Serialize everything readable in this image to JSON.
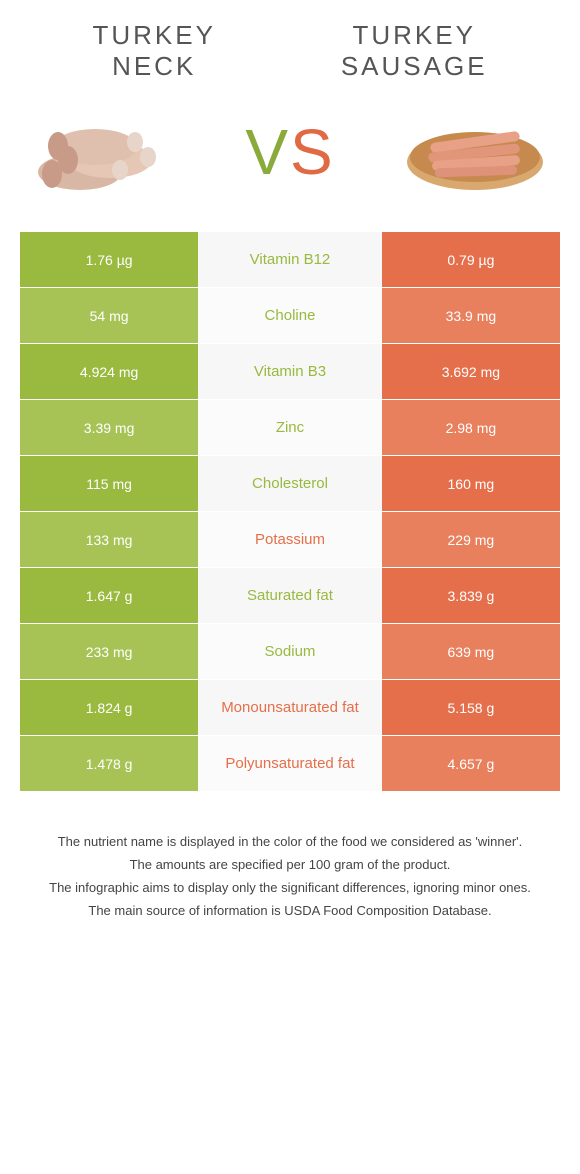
{
  "colors": {
    "green": "#99b93f",
    "green_light": "#a7c356",
    "orange": "#e56f4a",
    "orange_light": "#e87f5d",
    "mid_bg": "#f7f7f7",
    "mid_bg_alt": "#fbfbfb"
  },
  "header": {
    "left_title": "TURKEY\nNECK",
    "right_title": "TURKEY\nSAUSAGE",
    "vs_v": "V",
    "vs_s": "S"
  },
  "rows": [
    {
      "left": "1.76 µg",
      "mid": "Vitamin B12",
      "right": "0.79 µg",
      "winner": "left"
    },
    {
      "left": "54 mg",
      "mid": "Choline",
      "right": "33.9 mg",
      "winner": "left"
    },
    {
      "left": "4.924 mg",
      "mid": "Vitamin B3",
      "right": "3.692 mg",
      "winner": "left"
    },
    {
      "left": "3.39 mg",
      "mid": "Zinc",
      "right": "2.98 mg",
      "winner": "left"
    },
    {
      "left": "115 mg",
      "mid": "Cholesterol",
      "right": "160 mg",
      "winner": "left"
    },
    {
      "left": "133 mg",
      "mid": "Potassium",
      "right": "229 mg",
      "winner": "right"
    },
    {
      "left": "1.647 g",
      "mid": "Saturated fat",
      "right": "3.839 g",
      "winner": "left"
    },
    {
      "left": "233 mg",
      "mid": "Sodium",
      "right": "639 mg",
      "winner": "left"
    },
    {
      "left": "1.824 g",
      "mid": "Monounsaturated fat",
      "right": "5.158 g",
      "winner": "right"
    },
    {
      "left": "1.478 g",
      "mid": "Polyunsaturated fat",
      "right": "4.657 g",
      "winner": "right"
    }
  ],
  "footer": {
    "line1": "The nutrient name is displayed in the color of the food we considered as 'winner'.",
    "line2": "The amounts are specified per 100 gram of the product.",
    "line3": "The infographic aims to display only the significant differences, ignoring minor ones.",
    "line4": "The main source of information is USDA Food Composition Database."
  }
}
